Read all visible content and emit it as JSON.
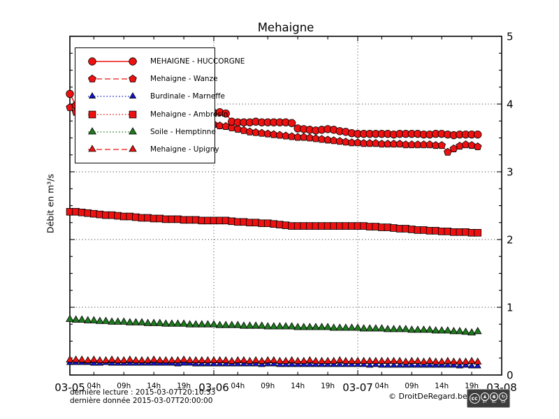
{
  "title": "Mehaigne",
  "footer": {
    "last_read": "dernière lecture : 2015-03-07T20:10:33",
    "last_data": "dernière donnée  2015-03-07T20:00:00"
  },
  "copyright": "© DroitDeRegard.be",
  "cc_badge": {
    "cc": "cc",
    "by": "BY",
    "nc": "NC",
    "sa": "SA"
  },
  "chart_data": {
    "type": "line",
    "title": "Mehaigne",
    "xlabel": "",
    "ylabel": "Débit en m³/s",
    "x_unit": "hours since 2015-03-05 00:00",
    "xlim": [
      0,
      72
    ],
    "ylim": [
      0,
      5
    ],
    "grid": "dotted, horizontal at integers and vertical at day boundaries",
    "legend_position": "upper left",
    "y_major_ticks": [
      0,
      1,
      2,
      3,
      4,
      5
    ],
    "y_minor_step": 0.25,
    "grid_horizontal_v": [
      1,
      2,
      3,
      4
    ],
    "grid_vertical_t": [
      24,
      48
    ],
    "x_day_ticks": [
      {
        "t": 0,
        "label": "03-05"
      },
      {
        "t": 24,
        "label": "03-06"
      },
      {
        "t": 48,
        "label": "03-07"
      },
      {
        "t": 72,
        "label": "03-08"
      }
    ],
    "x_hour_ticks": [
      {
        "t": 4,
        "label": "04h"
      },
      {
        "t": 9,
        "label": "09h"
      },
      {
        "t": 14,
        "label": "14h"
      },
      {
        "t": 19,
        "label": "19h"
      },
      {
        "t": 28,
        "label": "04h"
      },
      {
        "t": 33,
        "label": "09h"
      },
      {
        "t": 38,
        "label": "14h"
      },
      {
        "t": 43,
        "label": "19h"
      },
      {
        "t": 52,
        "label": "04h"
      },
      {
        "t": 57,
        "label": "09h"
      },
      {
        "t": 62,
        "label": "14h"
      },
      {
        "t": 67,
        "label": "19h"
      }
    ],
    "series": [
      {
        "name": "MEHAIGNE - HUCCORGNE",
        "color": "#ee1111",
        "marker": "circle",
        "line": "solid",
        "marker_size": 5.3,
        "values": [
          4.15,
          3.98,
          3.88,
          3.77,
          3.74,
          3.72,
          3.71,
          3.7,
          3.69,
          3.68,
          3.67,
          3.66,
          3.66,
          3.65,
          3.65,
          3.64,
          3.64,
          3.63,
          3.63,
          3.63,
          3.62,
          3.62,
          3.62,
          3.62,
          3.87,
          3.88,
          3.86,
          3.74,
          3.73,
          3.73,
          3.73,
          3.74,
          3.73,
          3.73,
          3.73,
          3.73,
          3.73,
          3.72,
          3.64,
          3.63,
          3.62,
          3.61,
          3.62,
          3.63,
          3.62,
          3.6,
          3.59,
          3.57,
          3.56,
          3.56,
          3.56,
          3.56,
          3.56,
          3.56,
          3.55,
          3.56,
          3.56,
          3.56,
          3.56,
          3.55,
          3.55,
          3.56,
          3.56,
          3.55,
          3.54,
          3.55,
          3.55,
          3.55,
          3.55
        ]
      },
      {
        "name": "Mehaigne - Wanze",
        "color": "#ee1111",
        "marker": "pentagon",
        "line": "dashed",
        "marker_size": 5.0,
        "values": [
          3.95,
          3.88,
          3.83,
          3.8,
          3.78,
          3.77,
          3.76,
          3.75,
          3.74,
          3.74,
          3.73,
          3.73,
          3.72,
          3.72,
          3.71,
          3.71,
          3.71,
          3.7,
          3.7,
          3.7,
          3.7,
          3.7,
          3.7,
          3.7,
          3.7,
          3.68,
          3.67,
          3.65,
          3.63,
          3.61,
          3.59,
          3.58,
          3.57,
          3.56,
          3.55,
          3.54,
          3.53,
          3.52,
          3.51,
          3.51,
          3.5,
          3.49,
          3.48,
          3.47,
          3.46,
          3.45,
          3.44,
          3.43,
          3.43,
          3.42,
          3.42,
          3.42,
          3.41,
          3.41,
          3.41,
          3.41,
          3.4,
          3.4,
          3.4,
          3.4,
          3.4,
          3.39,
          3.39,
          3.29,
          3.34,
          3.38,
          3.4,
          3.39,
          3.37
        ]
      },
      {
        "name": "Burdinale - Marneffe",
        "color": "#1414cc",
        "marker": "triangle",
        "line": "dotted",
        "marker_size": 4.6,
        "values": [
          0.18,
          0.18,
          0.18,
          0.18,
          0.17,
          0.17,
          0.18,
          0.17,
          0.17,
          0.17,
          0.17,
          0.17,
          0.17,
          0.17,
          0.17,
          0.17,
          0.17,
          0.17,
          0.16,
          0.17,
          0.17,
          0.16,
          0.16,
          0.16,
          0.16,
          0.16,
          0.16,
          0.16,
          0.16,
          0.16,
          0.16,
          0.16,
          0.15,
          0.16,
          0.16,
          0.15,
          0.15,
          0.15,
          0.15,
          0.15,
          0.15,
          0.15,
          0.15,
          0.15,
          0.15,
          0.15,
          0.15,
          0.15,
          0.15,
          0.15,
          0.14,
          0.15,
          0.14,
          0.14,
          0.14,
          0.14,
          0.14,
          0.14,
          0.14,
          0.14,
          0.14,
          0.14,
          0.14,
          0.14,
          0.14,
          0.13,
          0.14,
          0.13,
          0.13
        ]
      },
      {
        "name": "Mehaigne - Ambresin",
        "color": "#ee1111",
        "marker": "square",
        "line": "dotted",
        "marker_size": 4.9,
        "values": [
          2.41,
          2.41,
          2.4,
          2.39,
          2.38,
          2.37,
          2.36,
          2.36,
          2.35,
          2.34,
          2.34,
          2.33,
          2.32,
          2.32,
          2.31,
          2.31,
          2.3,
          2.3,
          2.3,
          2.29,
          2.29,
          2.29,
          2.28,
          2.28,
          2.28,
          2.28,
          2.28,
          2.27,
          2.26,
          2.26,
          2.25,
          2.25,
          2.24,
          2.24,
          2.23,
          2.22,
          2.21,
          2.2,
          2.2,
          2.2,
          2.2,
          2.2,
          2.2,
          2.2,
          2.2,
          2.2,
          2.2,
          2.2,
          2.2,
          2.2,
          2.19,
          2.19,
          2.18,
          2.18,
          2.17,
          2.16,
          2.16,
          2.15,
          2.14,
          2.14,
          2.13,
          2.13,
          2.12,
          2.12,
          2.11,
          2.11,
          2.11,
          2.1,
          2.1
        ]
      },
      {
        "name": "Soile - Hemptinne",
        "color": "#1f7a1f",
        "marker": "triangle",
        "line": "dotted",
        "marker_size": 5.4,
        "values": [
          0.82,
          0.81,
          0.81,
          0.8,
          0.8,
          0.79,
          0.79,
          0.78,
          0.78,
          0.78,
          0.77,
          0.77,
          0.77,
          0.76,
          0.76,
          0.76,
          0.75,
          0.75,
          0.75,
          0.75,
          0.74,
          0.74,
          0.74,
          0.74,
          0.74,
          0.73,
          0.73,
          0.73,
          0.73,
          0.72,
          0.72,
          0.72,
          0.72,
          0.71,
          0.71,
          0.71,
          0.71,
          0.71,
          0.7,
          0.7,
          0.7,
          0.7,
          0.7,
          0.7,
          0.69,
          0.69,
          0.69,
          0.69,
          0.69,
          0.68,
          0.68,
          0.68,
          0.68,
          0.67,
          0.67,
          0.67,
          0.67,
          0.66,
          0.66,
          0.66,
          0.66,
          0.65,
          0.65,
          0.65,
          0.64,
          0.64,
          0.63,
          0.62,
          0.64
        ]
      },
      {
        "name": "Mehaigne - Upigny",
        "color": "#ee1111",
        "marker": "triangle",
        "line": "dashed",
        "marker_size": 5.2,
        "values": [
          0.22,
          0.22,
          0.22,
          0.21,
          0.22,
          0.21,
          0.21,
          0.22,
          0.21,
          0.21,
          0.22,
          0.21,
          0.21,
          0.21,
          0.22,
          0.21,
          0.21,
          0.21,
          0.21,
          0.22,
          0.21,
          0.21,
          0.21,
          0.21,
          0.21,
          0.21,
          0.21,
          0.2,
          0.21,
          0.21,
          0.2,
          0.21,
          0.2,
          0.21,
          0.21,
          0.2,
          0.2,
          0.21,
          0.2,
          0.2,
          0.21,
          0.2,
          0.2,
          0.2,
          0.2,
          0.21,
          0.2,
          0.2,
          0.2,
          0.2,
          0.2,
          0.2,
          0.2,
          0.2,
          0.2,
          0.2,
          0.19,
          0.2,
          0.2,
          0.19,
          0.2,
          0.19,
          0.19,
          0.2,
          0.19,
          0.19,
          0.19,
          0.2,
          0.19
        ]
      }
    ]
  }
}
